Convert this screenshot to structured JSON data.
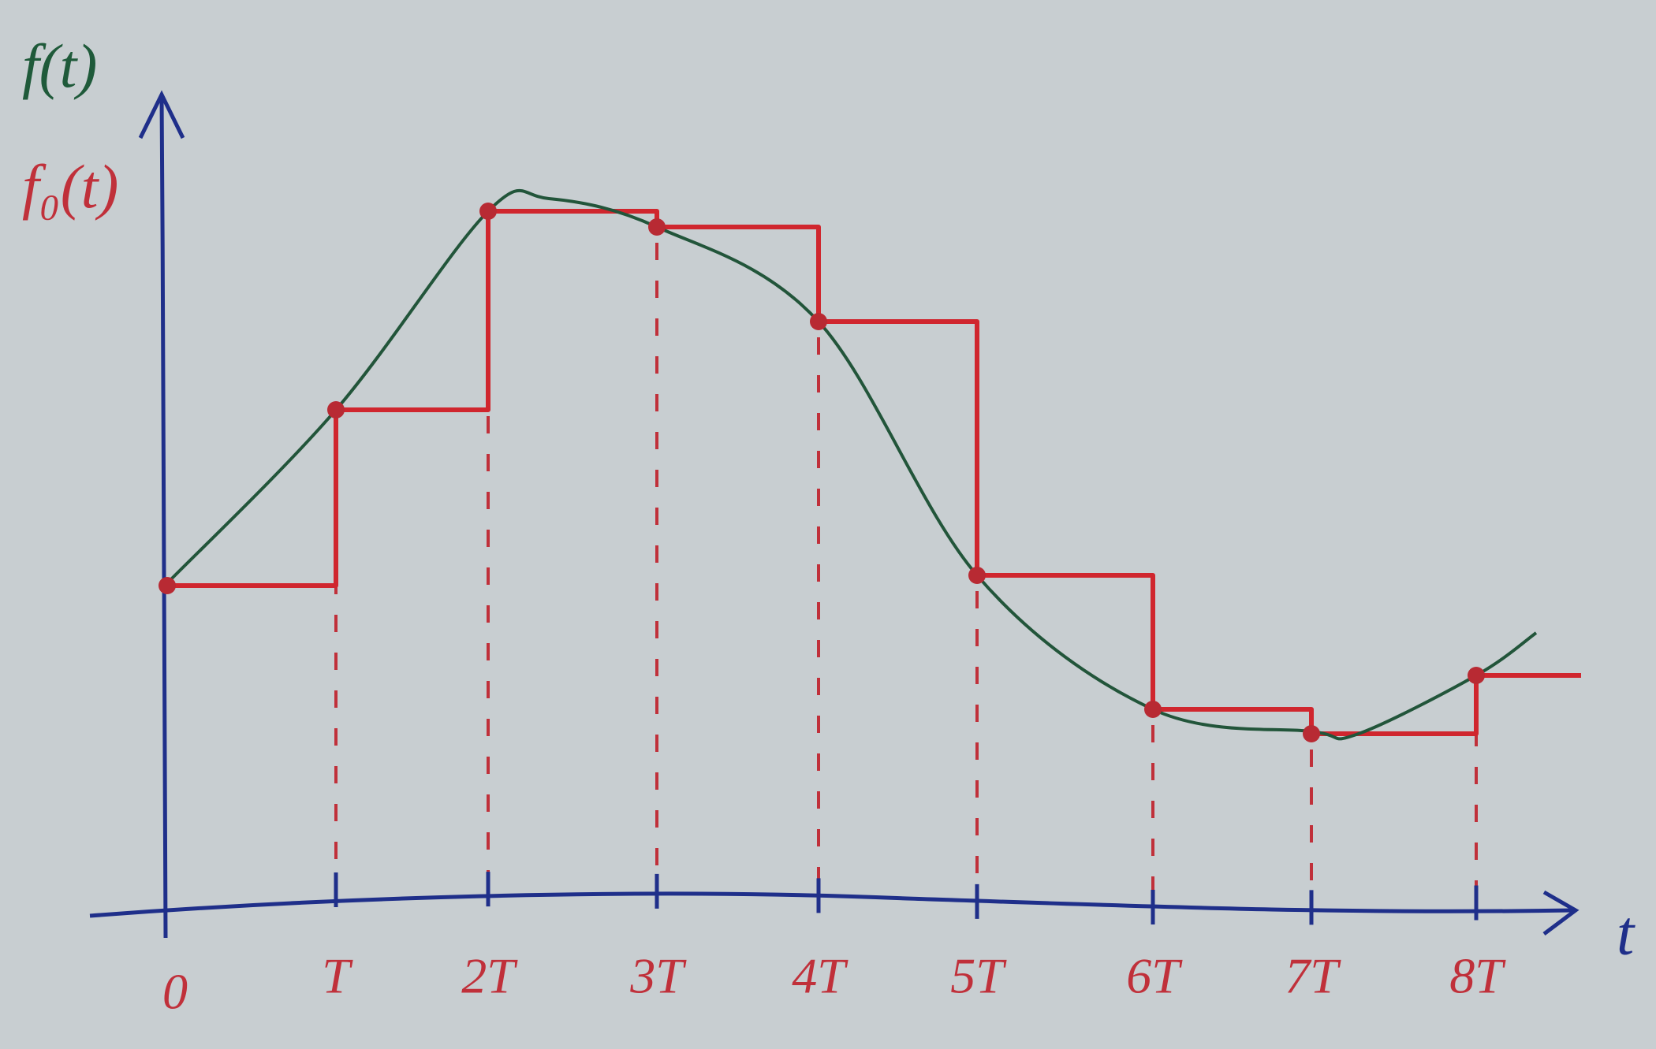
{
  "labels": {
    "f": "f(t)",
    "f0": "f₀(t)",
    "t_axis": "t"
  },
  "ticks": [
    "0",
    "T",
    "2T",
    "3T",
    "4T",
    "5T",
    "6T",
    "7T",
    "8T"
  ]
}
